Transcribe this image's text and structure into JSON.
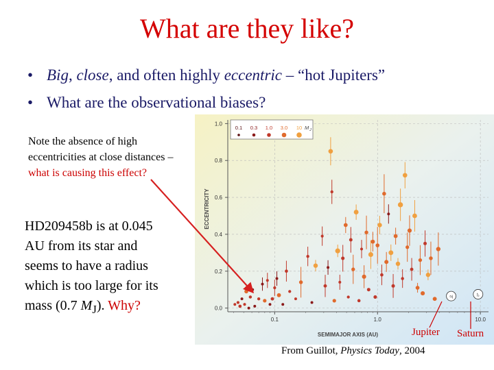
{
  "slide": {
    "title": "What are they like?",
    "bullets": [
      {
        "parts": [
          {
            "text": "Big",
            "italic": true
          },
          {
            "text": ", ",
            "italic": false
          },
          {
            "text": "close",
            "italic": true
          },
          {
            "text": ", and often highly ",
            "italic": false
          },
          {
            "text": "eccentric",
            "italic": true
          },
          {
            "text": " – “hot Jupiters”",
            "italic": false
          }
        ]
      },
      {
        "parts": [
          {
            "text": "What are the observational biases?",
            "italic": false
          }
        ]
      }
    ],
    "note_absence": {
      "black": "Note the absence of high eccentricities at close distances – ",
      "red": "what is causing this effect?"
    },
    "note_hd": {
      "black": "HD209458b is at 0.045 AU from its star and seems to have a radius which is too large for its mass (0.7 ",
      "mj_M": "M",
      "mj_sub": "J",
      "after": "). ",
      "red": "Why?"
    },
    "label_jupiter": "Jupiter",
    "label_saturn": "Saturn",
    "credit": {
      "pre": "From Guillot, ",
      "journal": "Physics Today",
      "post": ", 2004"
    },
    "colors": {
      "title": "#d40000",
      "bullet_text": "#1a1a66",
      "accent_red": "#cc0000",
      "arrow": "#d62020"
    }
  },
  "chart_data": {
    "type": "scatter",
    "xlabel": "SEMIMAJOR AXIS (AU)",
    "ylabel": "ECCENTRICITY",
    "xscale": "log",
    "xlim": [
      0.035,
      12
    ],
    "ylim": [
      -0.02,
      1.02
    ],
    "x_ticks": [
      {
        "v": 0.1,
        "label": "0.1"
      },
      {
        "v": 1.0,
        "label": "1.0"
      },
      {
        "v": 10,
        "label": "10.0"
      }
    ],
    "y_ticks": [
      {
        "v": 0.0,
        "label": "0.0"
      },
      {
        "v": 0.2,
        "label": "0.2"
      },
      {
        "v": 0.4,
        "label": "0.4"
      },
      {
        "v": 0.6,
        "label": "0.6"
      },
      {
        "v": 0.8,
        "label": "0.8"
      },
      {
        "v": 1.0,
        "label": "1.0"
      }
    ],
    "legend": {
      "placement": "top-left",
      "mass_labels": [
        "0.1",
        "0.3",
        "1.0",
        "3.0",
        "10"
      ],
      "unit_M": "M",
      "unit_sub": "J",
      "colors": [
        "#5a0f12",
        "#8b1a1a",
        "#c0392b",
        "#e06a2c",
        "#f0a040"
      ]
    },
    "solar_system": [
      {
        "name": "Jupiter",
        "symbol": "♃",
        "a": 5.2,
        "e": 0.05
      },
      {
        "name": "Saturn",
        "symbol": "♄",
        "a": 9.5,
        "e": 0.06
      }
    ],
    "points": [
      {
        "a": 0.041,
        "e": 0.02,
        "mass": 0.6
      },
      {
        "a": 0.044,
        "e": 0.03,
        "mass": 0.8
      },
      {
        "a": 0.046,
        "e": 0.01,
        "mass": 1.2
      },
      {
        "a": 0.048,
        "e": 0.05,
        "mass": 0.4
      },
      {
        "a": 0.051,
        "e": 0.02,
        "mass": 0.7
      },
      {
        "a": 0.053,
        "e": 0.09,
        "mass": 3.0
      },
      {
        "a": 0.056,
        "e": 0.0,
        "mass": 0.3
      },
      {
        "a": 0.058,
        "e": 0.06,
        "mass": 1.0
      },
      {
        "a": 0.061,
        "e": 0.1,
        "mass": 0.5
      },
      {
        "a": 0.064,
        "e": 0.01,
        "mass": 0.2
      },
      {
        "a": 0.07,
        "e": 0.05,
        "mass": 0.9
      },
      {
        "a": 0.076,
        "e": 0.13,
        "mass": 0.4
      },
      {
        "a": 0.08,
        "e": 0.04,
        "mass": 2.0
      },
      {
        "a": 0.085,
        "e": 0.15,
        "mass": 0.6
      },
      {
        "a": 0.09,
        "e": 0.02,
        "mass": 0.3
      },
      {
        "a": 0.095,
        "e": 0.05,
        "mass": 1.5
      },
      {
        "a": 0.1,
        "e": 0.11,
        "mass": 0.8
      },
      {
        "a": 0.105,
        "e": 0.16,
        "mass": 0.5
      },
      {
        "a": 0.11,
        "e": 0.07,
        "mass": 3.5
      },
      {
        "a": 0.12,
        "e": 0.02,
        "mass": 0.4
      },
      {
        "a": 0.13,
        "e": 0.2,
        "mass": 1.2
      },
      {
        "a": 0.14,
        "e": 0.09,
        "mass": 0.8
      },
      {
        "a": 0.16,
        "e": 0.05,
        "mass": 0.6
      },
      {
        "a": 0.18,
        "e": 0.14,
        "mass": 2.5
      },
      {
        "a": 0.21,
        "e": 0.28,
        "mass": 0.9
      },
      {
        "a": 0.23,
        "e": 0.03,
        "mass": 0.5
      },
      {
        "a": 0.25,
        "e": 0.23,
        "mass": 6.0
      },
      {
        "a": 0.29,
        "e": 0.39,
        "mass": 0.7
      },
      {
        "a": 0.31,
        "e": 0.12,
        "mass": 1.5
      },
      {
        "a": 0.33,
        "e": 0.22,
        "mass": 0.4
      },
      {
        "a": 0.35,
        "e": 0.85,
        "mass": 7.0
      },
      {
        "a": 0.36,
        "e": 0.63,
        "mass": 0.9
      },
      {
        "a": 0.38,
        "e": 0.04,
        "mass": 2.0
      },
      {
        "a": 0.41,
        "e": 0.31,
        "mass": 12.0
      },
      {
        "a": 0.43,
        "e": 0.14,
        "mass": 0.6
      },
      {
        "a": 0.46,
        "e": 0.27,
        "mass": 1.8
      },
      {
        "a": 0.49,
        "e": 0.45,
        "mass": 3.2
      },
      {
        "a": 0.52,
        "e": 0.06,
        "mass": 0.8
      },
      {
        "a": 0.55,
        "e": 0.37,
        "mass": 1.5
      },
      {
        "a": 0.58,
        "e": 0.21,
        "mass": 2.2
      },
      {
        "a": 0.62,
        "e": 0.52,
        "mass": 9.0
      },
      {
        "a": 0.66,
        "e": 0.04,
        "mass": 1.1
      },
      {
        "a": 0.7,
        "e": 0.32,
        "mass": 0.7
      },
      {
        "a": 0.74,
        "e": 0.17,
        "mass": 4.5
      },
      {
        "a": 0.78,
        "e": 0.41,
        "mass": 2.4
      },
      {
        "a": 0.82,
        "e": 0.1,
        "mass": 1.6
      },
      {
        "a": 0.86,
        "e": 0.29,
        "mass": 11.0
      },
      {
        "a": 0.9,
        "e": 0.36,
        "mass": 3.8
      },
      {
        "a": 0.95,
        "e": 0.06,
        "mass": 1.8
      },
      {
        "a": 1.0,
        "e": 0.34,
        "mass": 2.9
      },
      {
        "a": 1.05,
        "e": 0.45,
        "mass": 6.5
      },
      {
        "a": 1.1,
        "e": 0.18,
        "mass": 1.2
      },
      {
        "a": 1.16,
        "e": 0.62,
        "mass": 2.7
      },
      {
        "a": 1.22,
        "e": 0.25,
        "mass": 4.0
      },
      {
        "a": 1.28,
        "e": 0.51,
        "mass": 0.5
      },
      {
        "a": 1.35,
        "e": 0.3,
        "mass": 9.5
      },
      {
        "a": 1.42,
        "e": 0.12,
        "mass": 1.7
      },
      {
        "a": 1.5,
        "e": 0.39,
        "mass": 3.4
      },
      {
        "a": 1.58,
        "e": 0.24,
        "mass": 6.0
      },
      {
        "a": 1.67,
        "e": 0.56,
        "mass": 14.0
      },
      {
        "a": 1.75,
        "e": 0.16,
        "mass": 1.0
      },
      {
        "a": 1.85,
        "e": 0.72,
        "mass": 7.0
      },
      {
        "a": 1.95,
        "e": 0.33,
        "mass": 2.0
      },
      {
        "a": 2.05,
        "e": 0.42,
        "mass": 5.0
      },
      {
        "a": 2.15,
        "e": 0.21,
        "mass": 1.4
      },
      {
        "a": 2.3,
        "e": 0.5,
        "mass": 8.0
      },
      {
        "a": 2.45,
        "e": 0.11,
        "mass": 3.0
      },
      {
        "a": 2.6,
        "e": 0.26,
        "mass": 2.2
      },
      {
        "a": 2.75,
        "e": 0.08,
        "mass": 4.5
      },
      {
        "a": 2.9,
        "e": 0.35,
        "mass": 1.6
      },
      {
        "a": 3.1,
        "e": 0.18,
        "mass": 6.0
      },
      {
        "a": 3.3,
        "e": 0.27,
        "mass": 2.6
      },
      {
        "a": 3.6,
        "e": 0.05,
        "mass": 3.7
      },
      {
        "a": 3.9,
        "e": 0.32,
        "mass": 5.5
      }
    ]
  }
}
